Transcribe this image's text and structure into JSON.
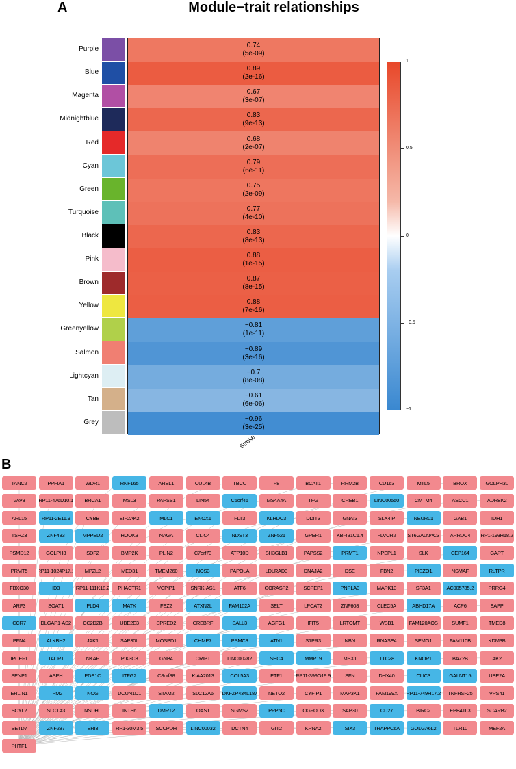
{
  "panel_a": {
    "letter": "A",
    "title": "Module−trait relationships"
  },
  "panel_b": {
    "letter": "B"
  },
  "chart_data": {
    "type": "heatmap",
    "title": "Module−trait relationships",
    "xlabel": "Stroke",
    "ylabel": "",
    "color_range": [
      -1,
      1
    ],
    "legend_ticks": [
      "1",
      "0.5",
      "0",
      "−0.5",
      "−1"
    ],
    "colors": {
      "positive": "#e8482a",
      "zero": "#ffffff",
      "negative": "#3a88d0"
    },
    "modules": [
      {
        "name": "Purple",
        "color": "#7b4fa6",
        "r": 0.74,
        "r_text": "0.74",
        "p": "(5e-09)"
      },
      {
        "name": "Blue",
        "color": "#1f4fa5",
        "r": 0.89,
        "r_text": "0.89",
        "p": "(2e-16)"
      },
      {
        "name": "Magenta",
        "color": "#b14fa4",
        "r": 0.67,
        "r_text": "0.67",
        "p": "(3e-07)"
      },
      {
        "name": "Midnightblue",
        "color": "#1e2a5a",
        "r": 0.83,
        "r_text": "0.83",
        "p": "(9e-13)"
      },
      {
        "name": "Red",
        "color": "#e52929",
        "r": 0.68,
        "r_text": "0.68",
        "p": "(2e-07)"
      },
      {
        "name": "Cyan",
        "color": "#6cc6d8",
        "r": 0.79,
        "r_text": "0.79",
        "p": "(6e-11)"
      },
      {
        "name": "Green",
        "color": "#69b42c",
        "r": 0.75,
        "r_text": "0.75",
        "p": "(2e-09)"
      },
      {
        "name": "Turquoise",
        "color": "#5ec0b8",
        "r": 0.77,
        "r_text": "0.77",
        "p": "(4e-10)"
      },
      {
        "name": "Black",
        "color": "#000000",
        "r": 0.83,
        "r_text": "0.83",
        "p": "(8e-13)"
      },
      {
        "name": "Pink",
        "color": "#f5bccb",
        "r": 0.88,
        "r_text": "0.88",
        "p": "(1e-15)"
      },
      {
        "name": "Brown",
        "color": "#9e2a2b",
        "r": 0.87,
        "r_text": "0.87",
        "p": "(8e-15)"
      },
      {
        "name": "Yellow",
        "color": "#eee740",
        "r": 0.88,
        "r_text": "0.88",
        "p": "(7e-16)"
      },
      {
        "name": "Greenyellow",
        "color": "#b0d04a",
        "r": -0.81,
        "r_text": "−0.81",
        "p": "(1e-11)"
      },
      {
        "name": "Salmon",
        "color": "#f07f72",
        "r": -0.89,
        "r_text": "−0.89",
        "p": "(3e-16)"
      },
      {
        "name": "Lightcyan",
        "color": "#ddeef3",
        "r": -0.7,
        "r_text": "−0.7",
        "p": "(8e-08)"
      },
      {
        "name": "Tan",
        "color": "#d4b08a",
        "r": -0.61,
        "r_text": "−0.61",
        "p": "(6e-06)"
      },
      {
        "name": "Grey",
        "color": "#bdbdbd",
        "r": -0.96,
        "r_text": "−0.96",
        "p": "(3e-25)"
      }
    ]
  },
  "network": {
    "colors": {
      "up": "#f2898e",
      "down": "#46b6e6"
    },
    "rows": [
      [
        [
          "TANC2",
          0
        ],
        [
          "PPFIA1",
          0
        ],
        [
          "WDR1",
          0
        ],
        [
          "RNF165",
          1
        ],
        [
          "AREL1",
          0
        ],
        [
          "CUL4B",
          0
        ],
        [
          "TBCC",
          0
        ],
        [
          "F8",
          0
        ],
        [
          "BCAT1",
          0
        ],
        [
          "RRM2B",
          0
        ],
        [
          "CD163",
          0
        ],
        [
          "MTL5",
          0
        ],
        [
          "BROX",
          0
        ],
        [
          "GOLPH3L",
          0
        ]
      ],
      [
        [
          "VAV3",
          0
        ],
        [
          "RP11-476D10.1",
          0
        ],
        [
          "BRCA1",
          0
        ],
        [
          "MSL3",
          0
        ],
        [
          "PAPSS1",
          0
        ],
        [
          "LIN54",
          0
        ],
        [
          "C5orf45",
          1
        ],
        [
          "MS4A4A",
          0
        ],
        [
          "TFG",
          0
        ],
        [
          "CREB1",
          0
        ],
        [
          "LINC00550",
          1
        ],
        [
          "CMTM4",
          0
        ],
        [
          "ASCC1",
          0
        ],
        [
          "ADRBK2",
          0
        ]
      ],
      [
        [
          "ARL15",
          0
        ],
        [
          "RP11-2E11.9",
          1
        ],
        [
          "CYBB",
          0
        ],
        [
          "EIF2AK2",
          0
        ],
        [
          "MLC1",
          1
        ],
        [
          "ENOX1",
          1
        ],
        [
          "FLT3",
          0
        ],
        [
          "KLHDC3",
          1
        ],
        [
          "DDIT3",
          0
        ],
        [
          "GNAI3",
          0
        ],
        [
          "SLX4IP",
          0
        ],
        [
          "NEURL1",
          1
        ],
        [
          "GAB1",
          0
        ],
        [
          "IDH1",
          0
        ]
      ],
      [
        [
          "TSHZ3",
          0
        ],
        [
          "ZNF483",
          1
        ],
        [
          "MPPED2",
          1
        ],
        [
          "HOOK3",
          0
        ],
        [
          "NAGA",
          0
        ],
        [
          "CLIC4",
          0
        ],
        [
          "NDST3",
          1
        ],
        [
          "ZNF521",
          1
        ],
        [
          "GPER1",
          0
        ],
        [
          "KB-431C1.4",
          0
        ],
        [
          "FLVCR2",
          0
        ],
        [
          "ST6GALNAC3",
          0
        ],
        [
          "ARRDC4",
          0
        ],
        [
          "RP1-193H18.2",
          0
        ]
      ],
      [
        [
          "PSMD12",
          0
        ],
        [
          "GOLPH3",
          0
        ],
        [
          "SDF2",
          0
        ],
        [
          "BMP2K",
          0
        ],
        [
          "PLIN2",
          0
        ],
        [
          "C7orf73",
          0
        ],
        [
          "ATP10D",
          0
        ],
        [
          "SH3GLB1",
          0
        ],
        [
          "PAPSS2",
          0
        ],
        [
          "PRMT1",
          1
        ],
        [
          "NPEPL1",
          0
        ],
        [
          "SLK",
          0
        ],
        [
          "CEP164",
          1
        ],
        [
          "GAPT",
          0
        ]
      ],
      [
        [
          "PRMT5",
          0
        ],
        [
          "RP11-1024P17.1",
          0
        ],
        [
          "MPZL2",
          0
        ],
        [
          "MED31",
          0
        ],
        [
          "TMEM260",
          0
        ],
        [
          "NOS3",
          1
        ],
        [
          "PAPOLA",
          0
        ],
        [
          "LDLRAD3",
          0
        ],
        [
          "DNAJA2",
          0
        ],
        [
          "DSE",
          0
        ],
        [
          "FBN2",
          0
        ],
        [
          "PIEZO1",
          1
        ],
        [
          "NSMAF",
          0
        ],
        [
          "RLTPR",
          1
        ]
      ],
      [
        [
          "FBXO30",
          0
        ],
        [
          "ID3",
          1
        ],
        [
          "RP11-111K18.2",
          0
        ],
        [
          "PHACTR1",
          0
        ],
        [
          "VCPIP1",
          0
        ],
        [
          "SNRK-AS1",
          0
        ],
        [
          "ATF6",
          0
        ],
        [
          "GORASP2",
          0
        ],
        [
          "SCPEP1",
          0
        ],
        [
          "PNPLA3",
          1
        ],
        [
          "MAPK13",
          0
        ],
        [
          "SF3A1",
          0
        ],
        [
          "AC005785.2",
          1
        ],
        [
          "PRRG4",
          0
        ]
      ],
      [
        [
          "ARF3",
          0
        ],
        [
          "SOAT1",
          0
        ],
        [
          "PLD4",
          1
        ],
        [
          "MATK",
          1
        ],
        [
          "FEZ2",
          0
        ],
        [
          "ATXN2L",
          1
        ],
        [
          "FAM102A",
          1
        ],
        [
          "SELT",
          0
        ],
        [
          "LPCAT2",
          0
        ],
        [
          "ZNF608",
          0
        ],
        [
          "CLEC5A",
          0
        ],
        [
          "ABHD17A",
          1
        ],
        [
          "ACP6",
          0
        ],
        [
          "EAPP",
          0
        ]
      ],
      [
        [
          "CCR7",
          1
        ],
        [
          "DLGAP1-AS2",
          0
        ],
        [
          "CC2D2B",
          0
        ],
        [
          "UBE2E3",
          0
        ],
        [
          "SPRED2",
          0
        ],
        [
          "CREBRF",
          0
        ],
        [
          "SALL3",
          1
        ],
        [
          "AGFG1",
          0
        ],
        [
          "IFIT5",
          0
        ],
        [
          "LRTOMT",
          0
        ],
        [
          "WSB1",
          0
        ],
        [
          "FAM120AOS",
          0
        ],
        [
          "SUMF1",
          0
        ],
        [
          "TMED8",
          0
        ]
      ],
      [
        [
          "PFN4",
          0
        ],
        [
          "ALKBH2",
          1
        ],
        [
          "JAK1",
          0
        ],
        [
          "SAP30L",
          0
        ],
        [
          "MOSPD1",
          0
        ],
        [
          "CHMP7",
          1
        ],
        [
          "PSMC3",
          1
        ],
        [
          "ATN1",
          1
        ],
        [
          "S1PR3",
          0
        ],
        [
          "NBN",
          0
        ],
        [
          "RNASE4",
          0
        ],
        [
          "SEMG1",
          0
        ],
        [
          "FAM110B",
          0
        ],
        [
          "KDM3B",
          0
        ]
      ],
      [
        [
          "IPCEF1",
          0
        ],
        [
          "TACR1",
          1
        ],
        [
          "NKAP",
          0
        ],
        [
          "PIK3C3",
          0
        ],
        [
          "GNB4",
          0
        ],
        [
          "CRIPT",
          0
        ],
        [
          "LINC00282",
          0
        ],
        [
          "SHC4",
          1
        ],
        [
          "MMP19",
          1
        ],
        [
          "MSX1",
          0
        ],
        [
          "TTC28",
          1
        ],
        [
          "KNOP1",
          1
        ],
        [
          "BAZ2B",
          0
        ],
        [
          "AK2",
          0
        ]
      ],
      [
        [
          "SENP1",
          0
        ],
        [
          "ASPH",
          0
        ],
        [
          "PDE1C",
          1
        ],
        [
          "ITFG2",
          1
        ],
        [
          "C8orf88",
          0
        ],
        [
          "KIAA2013",
          0
        ],
        [
          "COL5A3",
          1
        ],
        [
          "ETF1",
          0
        ],
        [
          "RP11-399O19.9",
          0
        ],
        [
          "SFN",
          0
        ],
        [
          "DHX40",
          0
        ],
        [
          "CLIC3",
          1
        ],
        [
          "GALNT15",
          1
        ],
        [
          "UBE2A",
          0
        ]
      ],
      [
        [
          "ERLIN1",
          0
        ],
        [
          "TPM2",
          1
        ],
        [
          "NOG",
          1
        ],
        [
          "DCUN1D1",
          0
        ],
        [
          "STAM2",
          0
        ],
        [
          "SLC12A6",
          0
        ],
        [
          "DKFZP434L187",
          1
        ],
        [
          "NETO2",
          0
        ],
        [
          "CYFIP1",
          0
        ],
        [
          "MAP3K1",
          0
        ],
        [
          "FAM199X",
          0
        ],
        [
          "RP11-749H17.2",
          1
        ],
        [
          "TNFRSF25",
          0
        ],
        [
          "VPS41",
          0
        ]
      ],
      [
        [
          "SCYL2",
          0
        ],
        [
          "SLC1A3",
          0
        ],
        [
          "NSDHL",
          0
        ],
        [
          "INTS6",
          0
        ],
        [
          "DMRT2",
          1
        ],
        [
          "OAS1",
          0
        ],
        [
          "SGMS2",
          0
        ],
        [
          "PPP5C",
          1
        ],
        [
          "OGFOD3",
          0
        ],
        [
          "SAP30",
          0
        ],
        [
          "CD27",
          1
        ],
        [
          "BIRC2",
          0
        ],
        [
          "EPB41L3",
          0
        ],
        [
          "SCARB2",
          0
        ]
      ],
      [
        [
          "SETD7",
          0
        ],
        [
          "ZNF287",
          1
        ],
        [
          "ERI3",
          1
        ],
        [
          "RP1-30M3.5",
          0
        ],
        [
          "SCCPDH",
          0
        ],
        [
          "LINC00032",
          1
        ],
        [
          "DCTN4",
          0
        ],
        [
          "GIT2",
          0
        ],
        [
          "KPNA2",
          0
        ],
        [
          "SIX3",
          1
        ],
        [
          "TRAPPC6A",
          1
        ],
        [
          "GOLGA6L2",
          1
        ],
        [
          "TLR10",
          0
        ],
        [
          "MEF2A",
          0
        ]
      ],
      [
        [
          "PHTF1",
          0
        ]
      ]
    ]
  }
}
